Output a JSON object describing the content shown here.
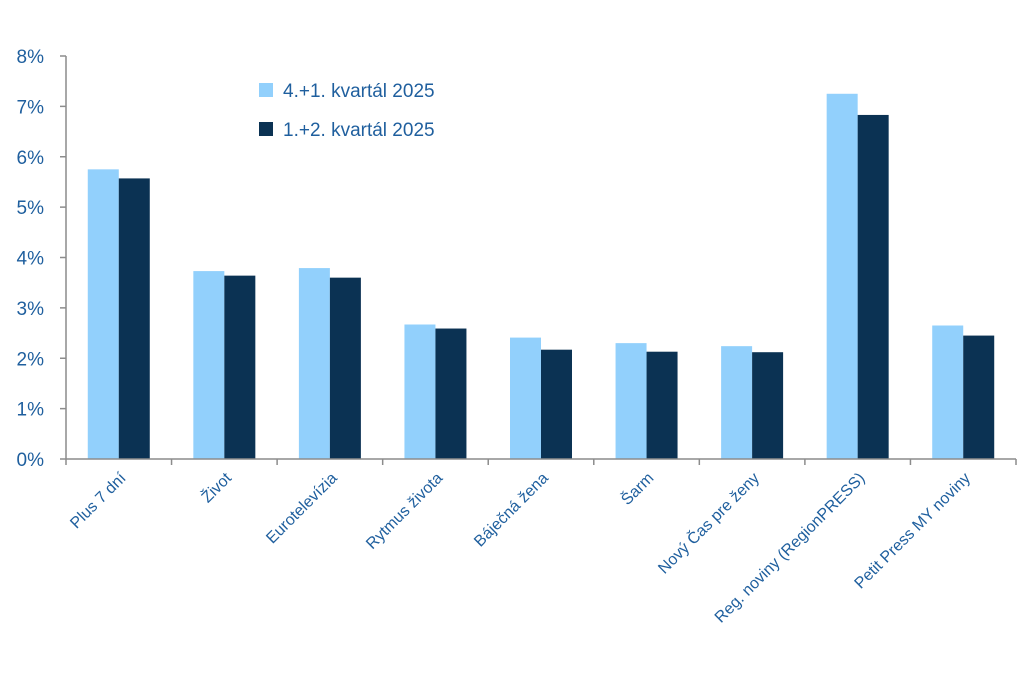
{
  "chart_data": {
    "type": "bar",
    "title": "",
    "xlabel": "",
    "ylabel": "",
    "categories": [
      "Plus 7 dní",
      "Život",
      "Eurotelevízia",
      "Rytmus života",
      "Báječná žena",
      "Šarm",
      "Nový Čas pre ženy",
      "Reg. noviny (RegionPRESS)",
      "Petit Press MY noviny"
    ],
    "series": [
      {
        "name": "4.+1. kvartál 2025",
        "color": "#92d0fc",
        "values": [
          5.75,
          3.73,
          3.79,
          2.67,
          2.41,
          2.3,
          2.24,
          7.25,
          2.65
        ]
      },
      {
        "name": "1.+2. kvartál 2025",
        "color": "#0b3253",
        "values": [
          5.57,
          3.64,
          3.6,
          2.59,
          2.17,
          2.13,
          2.12,
          6.83,
          2.45
        ]
      }
    ],
    "ylim": [
      0,
      8
    ],
    "yticks": [
      "0%",
      "1%",
      "2%",
      "3%",
      "4%",
      "5%",
      "6%",
      "7%",
      "8%"
    ],
    "grid": false,
    "legend_position": "top-left"
  }
}
